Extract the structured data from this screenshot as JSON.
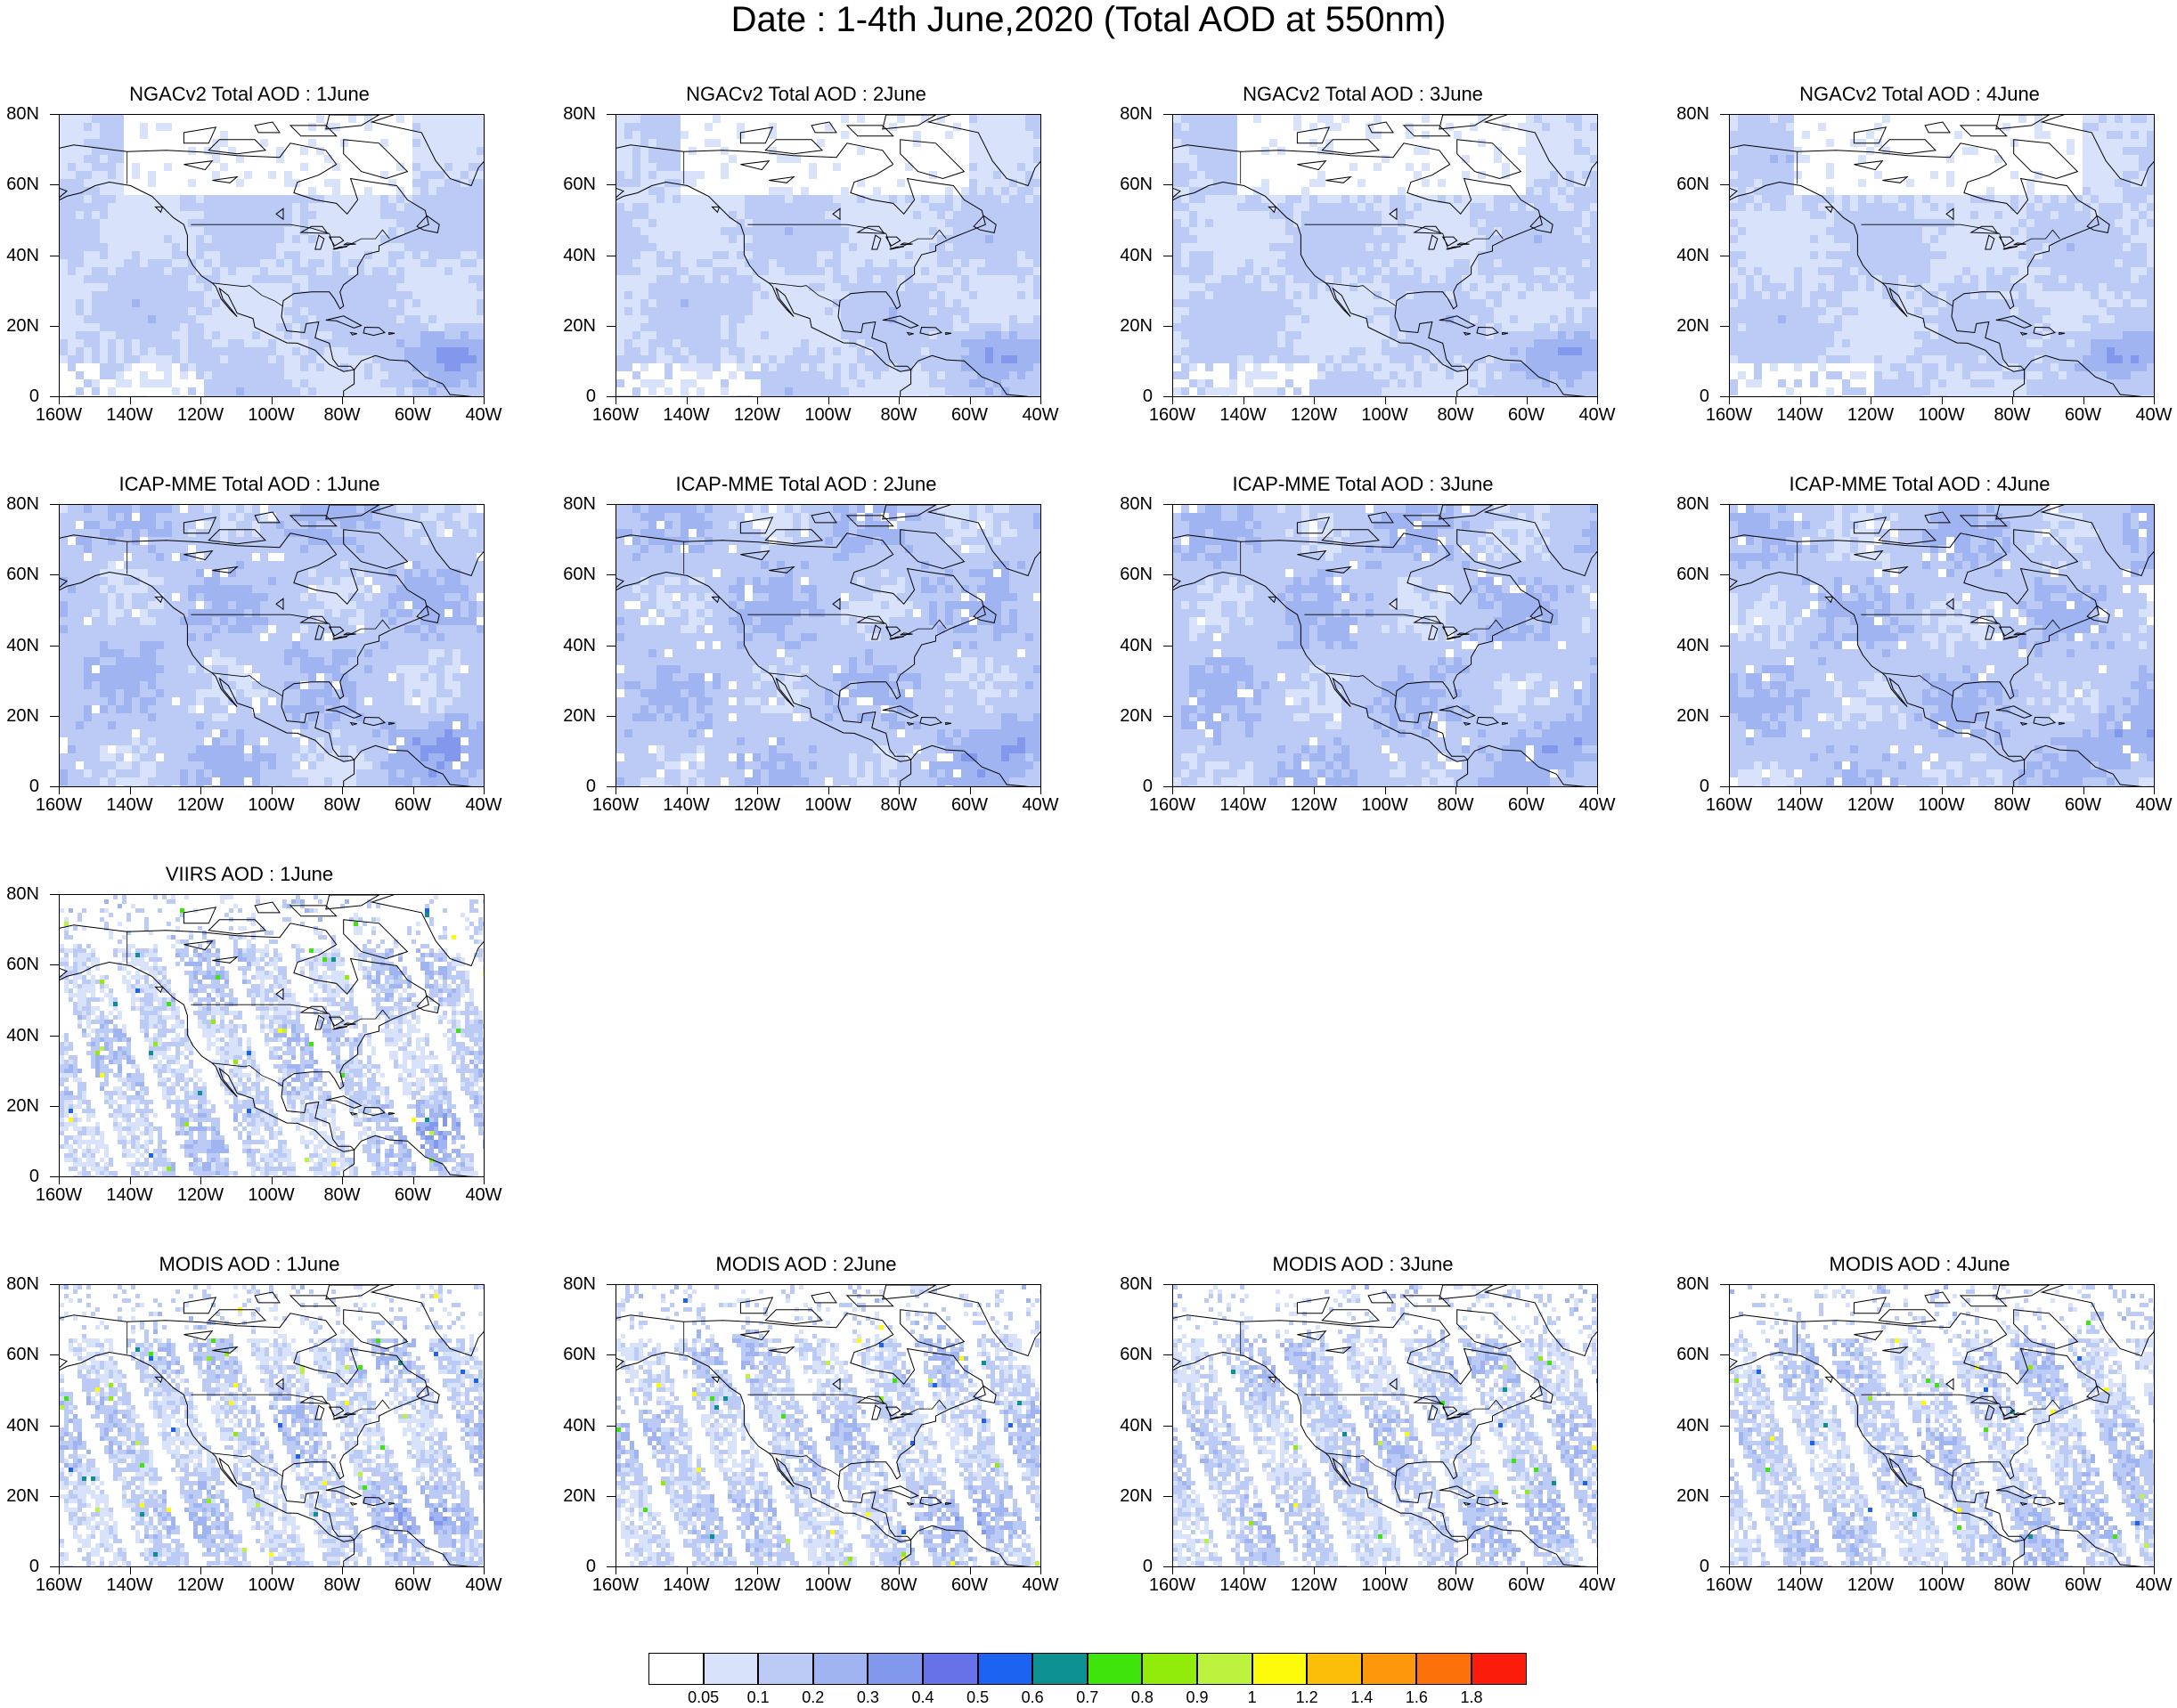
{
  "title": "Date : 1-4th June,2020 (Total AOD at 550nm)",
  "axes": {
    "lat_ticks": [
      "80N",
      "60N",
      "40N",
      "20N",
      "0"
    ],
    "lon_ticks": [
      "160W",
      "140W",
      "120W",
      "100W",
      "80W",
      "60W",
      "40W"
    ],
    "lat_range": [
      0,
      80
    ],
    "lon_range": [
      -160,
      -40
    ]
  },
  "panels": [
    {
      "id": "ngac-1",
      "title": "NGACv2 Total AOD : 1June",
      "row": 0,
      "col": 0,
      "dataset": "ngac",
      "seed": 11
    },
    {
      "id": "ngac-2",
      "title": "NGACv2 Total AOD : 2June",
      "row": 0,
      "col": 1,
      "dataset": "ngac",
      "seed": 12
    },
    {
      "id": "ngac-3",
      "title": "NGACv2 Total AOD : 3June",
      "row": 0,
      "col": 2,
      "dataset": "ngac",
      "seed": 13
    },
    {
      "id": "ngac-4",
      "title": "NGACv2 Total AOD : 4June",
      "row": 0,
      "col": 3,
      "dataset": "ngac",
      "seed": 14
    },
    {
      "id": "icap-1",
      "title": "ICAP-MME Total AOD : 1June",
      "row": 1,
      "col": 0,
      "dataset": "icap",
      "seed": 21
    },
    {
      "id": "icap-2",
      "title": "ICAP-MME Total AOD : 2June",
      "row": 1,
      "col": 1,
      "dataset": "icap",
      "seed": 22
    },
    {
      "id": "icap-3",
      "title": "ICAP-MME Total AOD : 3June",
      "row": 1,
      "col": 2,
      "dataset": "icap",
      "seed": 23
    },
    {
      "id": "icap-4",
      "title": "ICAP-MME Total AOD : 4June",
      "row": 1,
      "col": 3,
      "dataset": "icap",
      "seed": 24
    },
    {
      "id": "viirs-1",
      "title": "VIIRS AOD : 1June",
      "row": 2,
      "col": 0,
      "dataset": "viirs",
      "seed": 31
    },
    {
      "id": "modis-1",
      "title": "MODIS AOD : 1June",
      "row": 3,
      "col": 0,
      "dataset": "modis",
      "seed": 41
    },
    {
      "id": "modis-2",
      "title": "MODIS AOD : 2June",
      "row": 3,
      "col": 1,
      "dataset": "modis",
      "seed": 42
    },
    {
      "id": "modis-3",
      "title": "MODIS AOD : 3June",
      "row": 3,
      "col": 2,
      "dataset": "modis",
      "seed": 43
    },
    {
      "id": "modis-4",
      "title": "MODIS AOD : 4June",
      "row": 3,
      "col": 3,
      "dataset": "modis",
      "seed": 44
    }
  ],
  "colorbar": {
    "colors": [
      "#ffffff",
      "#d8e2fa",
      "#bccbf6",
      "#9fb4f1",
      "#8198ec",
      "#6771e8",
      "#1b63f0",
      "#0d9090",
      "#3ee40c",
      "#92ec0a",
      "#bdf33e",
      "#fdfb0a",
      "#fdbe0a",
      "#fd980a",
      "#fd710a",
      "#fb1c0b"
    ],
    "labels": [
      "0.05",
      "0.1",
      "0.2",
      "0.3",
      "0.4",
      "0.5",
      "0.6",
      "0.7",
      "0.8",
      "0.9",
      "1",
      "1.2",
      "1.4",
      "1.6",
      "1.8"
    ]
  }
}
